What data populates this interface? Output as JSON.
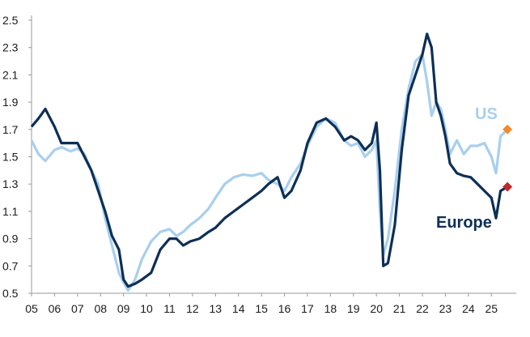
{
  "colors": {
    "us": "#a8cfee",
    "europe": "#0d2f57",
    "us_marker": "#f28a2e",
    "europe_marker": "#c1272d",
    "axis": "#999999"
  },
  "chart_data": {
    "type": "line",
    "title": "",
    "xlabel": "",
    "ylabel": "",
    "x_unit": "year (2-digit labels)",
    "xlim": [
      2005.0,
      2025.8
    ],
    "ylim": [
      0.5,
      2.5
    ],
    "x_tick_labels": [
      "05",
      "06",
      "07",
      "08",
      "09",
      "10",
      "11",
      "12",
      "13",
      "14",
      "15",
      "16",
      "17",
      "18",
      "19",
      "20",
      "21",
      "22",
      "23",
      "24",
      "25"
    ],
    "y_tick_labels": [
      "0.5",
      "0.7",
      "0.9",
      "1.1",
      "1.3",
      "1.5",
      "1.7",
      "1.9",
      "2.1",
      "2.3",
      "2.5"
    ],
    "grid": false,
    "legend": "inline labels",
    "series": [
      {
        "name": "US",
        "color_key": "us",
        "x": [
          2005.0,
          2005.3,
          2005.6,
          2006.0,
          2006.3,
          2006.7,
          2007.0,
          2007.3,
          2007.6,
          2007.9,
          2008.2,
          2008.5,
          2008.8,
          2009.0,
          2009.2,
          2009.5,
          2009.8,
          2010.2,
          2010.6,
          2011.0,
          2011.3,
          2011.6,
          2011.9,
          2012.3,
          2012.7,
          2013.0,
          2013.4,
          2013.8,
          2014.2,
          2014.6,
          2015.0,
          2015.3,
          2015.7,
          2016.0,
          2016.3,
          2016.7,
          2017.0,
          2017.4,
          2017.8,
          2018.2,
          2018.6,
          2018.9,
          2019.2,
          2019.5,
          2019.8,
          2020.0,
          2020.15,
          2020.3,
          2020.5,
          2020.8,
          2021.1,
          2021.4,
          2021.7,
          2022.0,
          2022.2,
          2022.4,
          2022.6,
          2022.8,
          2023.0,
          2023.2,
          2023.5,
          2023.8,
          2024.1,
          2024.4,
          2024.7,
          2025.0,
          2025.2,
          2025.4,
          2025.7
        ],
        "values": [
          1.62,
          1.52,
          1.47,
          1.55,
          1.57,
          1.54,
          1.56,
          1.52,
          1.4,
          1.3,
          1.05,
          0.85,
          0.65,
          0.58,
          0.52,
          0.6,
          0.75,
          0.88,
          0.95,
          0.97,
          0.92,
          0.95,
          1.0,
          1.05,
          1.12,
          1.2,
          1.3,
          1.35,
          1.37,
          1.36,
          1.38,
          1.33,
          1.3,
          1.25,
          1.35,
          1.45,
          1.58,
          1.72,
          1.78,
          1.75,
          1.62,
          1.58,
          1.6,
          1.5,
          1.55,
          1.62,
          1.1,
          0.78,
          0.9,
          1.25,
          1.7,
          2.0,
          2.2,
          2.25,
          2.05,
          1.8,
          1.9,
          1.85,
          1.7,
          1.52,
          1.62,
          1.52,
          1.58,
          1.58,
          1.6,
          1.5,
          1.38,
          1.65,
          1.7
        ]
      },
      {
        "name": "Europe",
        "color_key": "europe",
        "x": [
          2005.0,
          2005.3,
          2005.6,
          2006.0,
          2006.3,
          2006.7,
          2007.0,
          2007.3,
          2007.6,
          2007.9,
          2008.2,
          2008.5,
          2008.8,
          2009.0,
          2009.2,
          2009.5,
          2009.8,
          2010.2,
          2010.6,
          2011.0,
          2011.3,
          2011.6,
          2011.9,
          2012.3,
          2012.7,
          2013.0,
          2013.4,
          2013.8,
          2014.2,
          2014.6,
          2015.0,
          2015.3,
          2015.7,
          2016.0,
          2016.3,
          2016.7,
          2017.0,
          2017.4,
          2017.8,
          2018.2,
          2018.6,
          2018.9,
          2019.2,
          2019.5,
          2019.8,
          2020.0,
          2020.15,
          2020.3,
          2020.5,
          2020.8,
          2021.1,
          2021.4,
          2021.7,
          2022.0,
          2022.2,
          2022.4,
          2022.6,
          2022.8,
          2023.0,
          2023.2,
          2023.5,
          2023.8,
          2024.1,
          2024.4,
          2024.7,
          2025.0,
          2025.2,
          2025.4,
          2025.7
        ],
        "values": [
          1.72,
          1.78,
          1.85,
          1.72,
          1.6,
          1.6,
          1.6,
          1.5,
          1.4,
          1.25,
          1.1,
          0.92,
          0.82,
          0.6,
          0.55,
          0.57,
          0.6,
          0.65,
          0.82,
          0.9,
          0.9,
          0.85,
          0.88,
          0.9,
          0.95,
          0.98,
          1.05,
          1.1,
          1.15,
          1.2,
          1.25,
          1.3,
          1.35,
          1.2,
          1.25,
          1.4,
          1.6,
          1.75,
          1.78,
          1.72,
          1.62,
          1.65,
          1.62,
          1.55,
          1.6,
          1.75,
          1.4,
          0.7,
          0.72,
          1.0,
          1.55,
          1.95,
          2.1,
          2.25,
          2.4,
          2.3,
          1.9,
          1.8,
          1.65,
          1.45,
          1.38,
          1.36,
          1.35,
          1.3,
          1.25,
          1.2,
          1.05,
          1.25,
          1.28
        ]
      }
    ],
    "annotations": [
      {
        "text": "US",
        "color_key": "us"
      },
      {
        "text": "Europe",
        "color_key": "europe"
      }
    ]
  }
}
